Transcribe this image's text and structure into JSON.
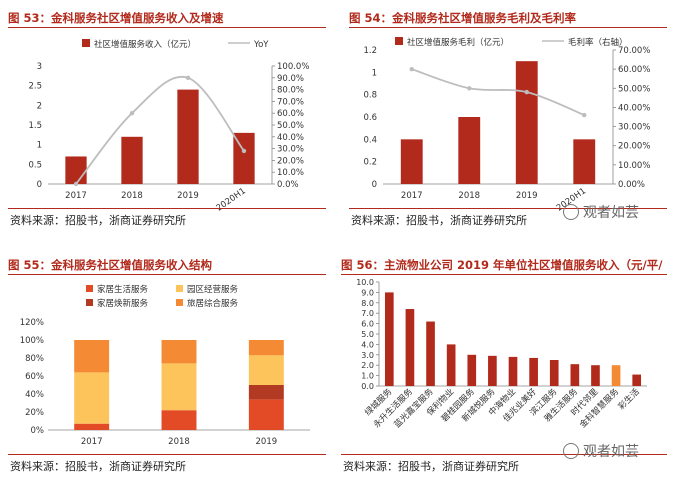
{
  "watermark": "观者如芸",
  "panels": [
    {
      "title": "图 53：金科服务社区增值服务收入及增速",
      "source": "资料来源：招股书，浙商证券研究所",
      "chart_data": {
        "type": "bar+line",
        "categories": [
          "2017",
          "2018",
          "2019",
          "2020H1"
        ],
        "series": [
          {
            "name": "社区增值服务收入（亿元）",
            "type": "bar",
            "axis": "left",
            "values": [
              0.7,
              1.2,
              2.4,
              1.3
            ],
            "color": "#b22a1c"
          },
          {
            "name": "YoY",
            "type": "line",
            "axis": "right",
            "values": [
              0.0,
              0.6,
              0.9,
              0.28
            ],
            "color": "#bdbdbd"
          }
        ],
        "y_left_ticks": [
          "0",
          "0.5",
          "1",
          "1.5",
          "2",
          "2.5",
          "3"
        ],
        "y_right_ticks": [
          "0.0%",
          "10.0%",
          "20.0%",
          "30.0%",
          "40.0%",
          "50.0%",
          "60.0%",
          "70.0%",
          "80.0%",
          "90.0%",
          "100.0%"
        ],
        "ylim_left": [
          0,
          3
        ],
        "ylim_right": [
          0,
          1
        ],
        "legend": "top"
      }
    },
    {
      "title": "图 54：金科服务社区增值服务毛利及毛利率",
      "source": "资料来源：招股书，浙商证券研究所",
      "chart_data": {
        "type": "bar+line",
        "categories": [
          "2017",
          "2018",
          "2019",
          "2020H1"
        ],
        "series": [
          {
            "name": "社区增值服务毛利（亿元）",
            "type": "bar",
            "axis": "left",
            "values": [
              0.4,
              0.6,
              1.1,
              0.4
            ],
            "color": "#b22a1c"
          },
          {
            "name": "毛利率（右轴）",
            "type": "line",
            "axis": "right",
            "values": [
              0.6,
              0.5,
              0.48,
              0.36
            ],
            "color": "#bdbdbd"
          }
        ],
        "y_left_ticks": [
          "0",
          "0.2",
          "0.4",
          "0.6",
          "0.8",
          "1",
          "1.2"
        ],
        "y_right_ticks": [
          "0.00%",
          "10.00%",
          "20.00%",
          "30.00%",
          "40.00%",
          "50.00%",
          "60.00%",
          "70.00%"
        ],
        "ylim_left": [
          0,
          1.2
        ],
        "ylim_right": [
          0,
          0.7
        ],
        "legend": "top"
      }
    },
    {
      "title": "图 55：金科服务社区增值服务收入结构",
      "source": "资料来源：招股书，浙商证券研究所",
      "chart_data": {
        "type": "stacked-bar",
        "categories": [
          "2017",
          "2018",
          "2019"
        ],
        "series": [
          {
            "name": "家居生活服务",
            "values": [
              0.07,
              0.22,
              0.34
            ],
            "color": "#e24b26"
          },
          {
            "name": "家居焕新服务",
            "values": [
              0.0,
              0.0,
              0.16
            ],
            "color": "#b33a22"
          },
          {
            "name": "园区经营服务",
            "values": [
              0.57,
              0.52,
              0.33
            ],
            "color": "#fcc45a"
          },
          {
            "name": "旅居综合服务",
            "values": [
              0.36,
              0.26,
              0.17
            ],
            "color": "#f48a33"
          }
        ],
        "y_ticks": [
          "0%",
          "20%",
          "40%",
          "60%",
          "80%",
          "100%",
          "120%"
        ],
        "ylim": [
          0,
          1.2
        ],
        "legend": "top"
      }
    },
    {
      "title": "图 56：主流物业公司 2019 年单位社区增值服务收入（元/平/",
      "source": "资料来源：招股书，浙商证券研究所",
      "chart_data": {
        "type": "bar",
        "categories": [
          "绿城服务",
          "永升生活服务",
          "蓝光嘉宝服务",
          "保利物业",
          "碧桂园服务",
          "新城悦服务",
          "中海物业",
          "佳兆业美好",
          "滨江服务",
          "雅生活服务",
          "时代邻里",
          "金科智慧服务",
          "彩生活"
        ],
        "values": [
          9.0,
          7.4,
          6.2,
          4.0,
          3.0,
          2.9,
          2.8,
          2.7,
          2.5,
          2.1,
          2.0,
          2.0,
          1.1
        ],
        "colors": [
          "#b22a1c",
          "#b22a1c",
          "#b22a1c",
          "#b22a1c",
          "#b22a1c",
          "#b22a1c",
          "#b22a1c",
          "#b22a1c",
          "#b22a1c",
          "#b22a1c",
          "#b22a1c",
          "#f48a33",
          "#b22a1c"
        ],
        "y_ticks": [
          "0.0",
          "1.0",
          "2.0",
          "3.0",
          "4.0",
          "5.0",
          "6.0",
          "7.0",
          "8.0",
          "9.0",
          "10.0"
        ],
        "ylim": [
          0,
          10
        ]
      }
    }
  ]
}
